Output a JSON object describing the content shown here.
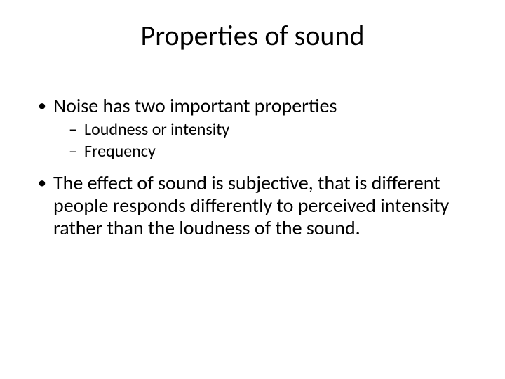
{
  "slide": {
    "background_color": "#ffffff",
    "text_color": "#000000",
    "title": {
      "text": "Properties of sound",
      "fontsize": 40,
      "align": "center"
    },
    "bullets": [
      {
        "text": "Noise has two important properties",
        "fontsize": 28,
        "sub": [
          {
            "text": "Loudness or intensity",
            "fontsize": 24
          },
          {
            "text": "Frequency",
            "fontsize": 24
          }
        ]
      },
      {
        "text": "The effect of sound is subjective, that is different people responds differently to perceived intensity rather than the loudness of the sound.",
        "fontsize": 28,
        "sub": []
      }
    ]
  }
}
